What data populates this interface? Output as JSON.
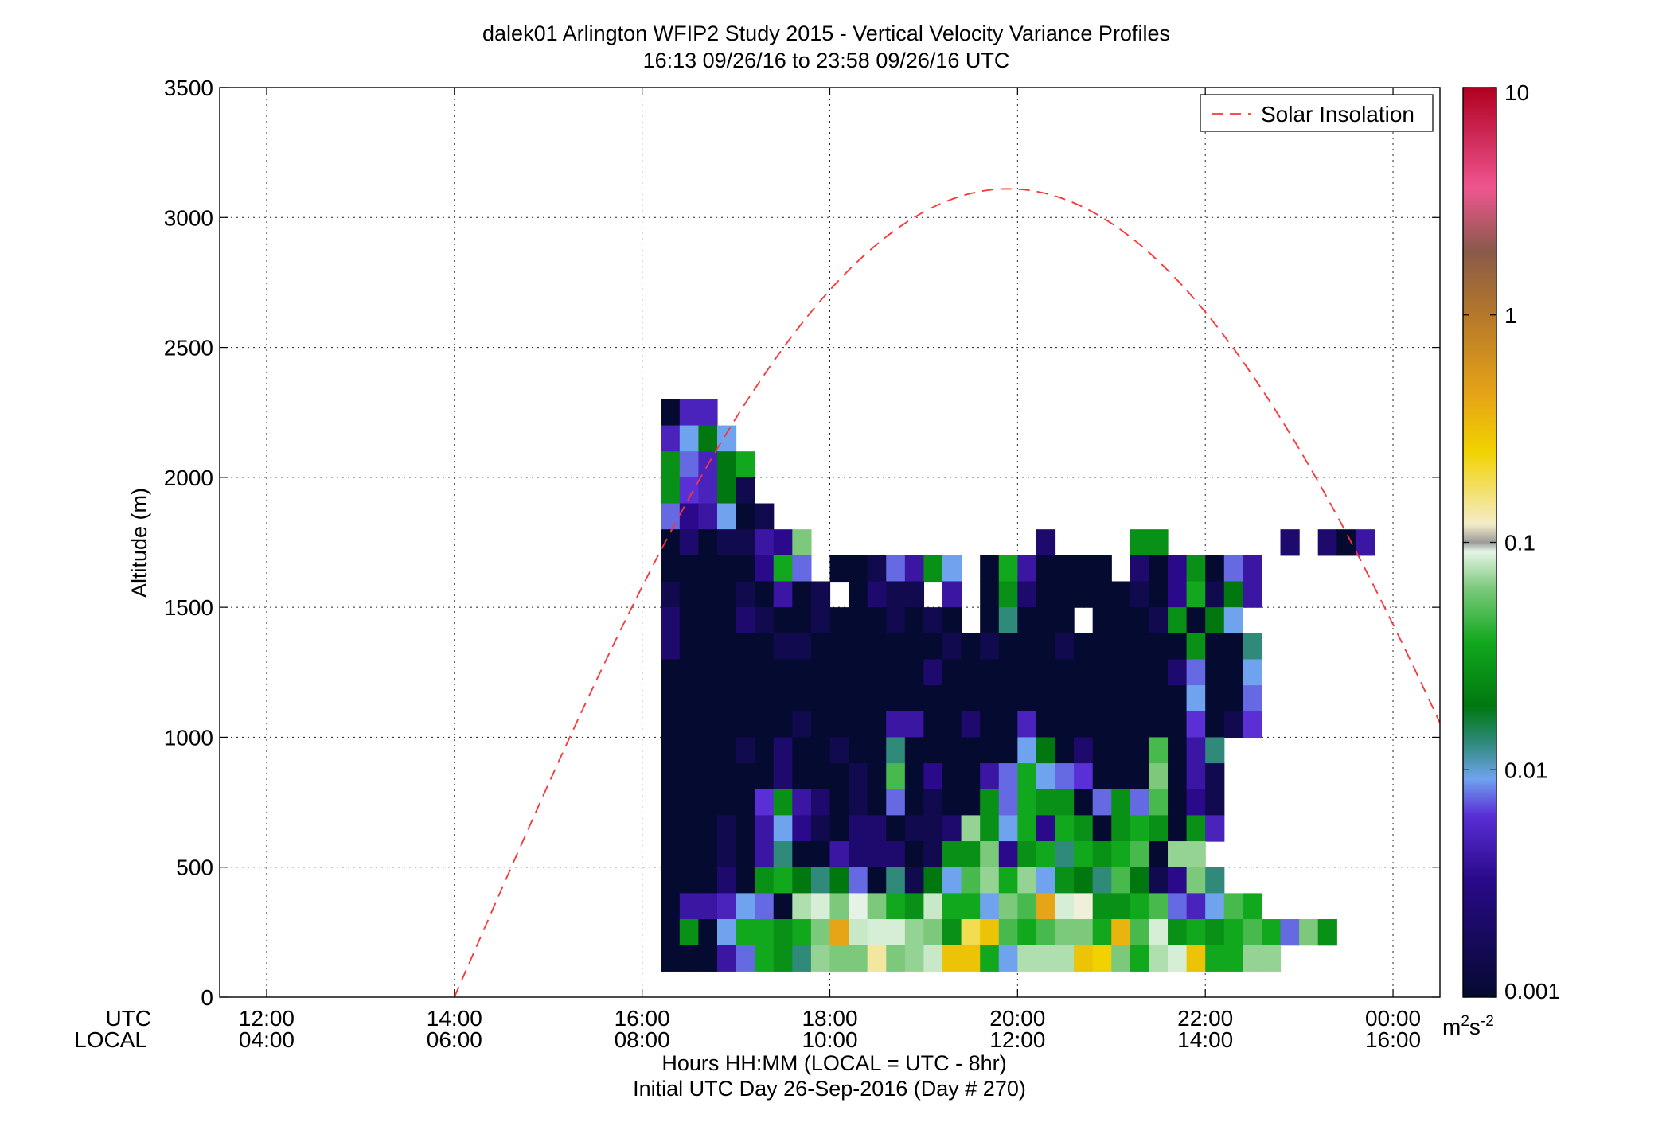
{
  "chart_data": {
    "type": "heatmap",
    "title": "dalek01 Arlington WFIP2 Study 2015 - Vertical Velocity Variance Profiles",
    "subtitle": "16:13 09/26/16 to 23:58 09/26/16  UTC",
    "ylabel": "Altitude (m)",
    "xlabel": "Hours HH:MM  (LOCAL = UTC - 8hr)",
    "xlabel2": "Initial UTC Day 26-Sep-2016 (Day # 270)",
    "row_label_utc": "UTC",
    "row_label_local": "LOCAL",
    "xlim": [
      11.5,
      24.5
    ],
    "ylim": [
      0,
      3500
    ],
    "grid": true,
    "y_ticks": [
      "0",
      "500",
      "1000",
      "1500",
      "2000",
      "2500",
      "3000",
      "3500"
    ],
    "x_ticks": [
      {
        "hour": 12,
        "utc": "12:00",
        "local": "04:00"
      },
      {
        "hour": 14,
        "utc": "14:00",
        "local": "06:00"
      },
      {
        "hour": 16,
        "utc": "16:00",
        "local": "08:00"
      },
      {
        "hour": 18,
        "utc": "18:00",
        "local": "10:00"
      },
      {
        "hour": 20,
        "utc": "20:00",
        "local": "12:00"
      },
      {
        "hour": 22,
        "utc": "22:00",
        "local": "14:00"
      },
      {
        "hour": 24,
        "utc": "00:00",
        "local": "16:00"
      }
    ],
    "colorbar": {
      "scale": "log",
      "range": [
        0.001,
        10
      ],
      "tick_labels": [
        "0.001",
        "0.01",
        "0.1",
        "1",
        "10"
      ],
      "unit_base": "m",
      "unit_exp1": "2",
      "unit_mid": "s",
      "unit_exp2": "-2"
    },
    "legend": {
      "entries": [
        {
          "name": "Solar Insolation",
          "style": "dashed",
          "color": "#ff3333"
        }
      ],
      "placement": "top-right"
    },
    "solar_insolation": {
      "start_hour": 14.0,
      "peak_hour": 19.9,
      "peak_altitude": 3110,
      "color": "#ff3333"
    },
    "heatmap": {
      "x_start_hour": 16.2,
      "x_step_hours": 0.2,
      "columns": 40,
      "y_bottom": 200,
      "y_step": 100,
      "rows_from_top": [
        {
          "top": 2300,
          "lv": [
            -3.0,
            -2.5,
            -2.5
          ]
        },
        {
          "top": 2200,
          "lv": [
            -2.5,
            -2.2,
            -2.0,
            -2.2
          ]
        },
        {
          "top": 2100,
          "lv": [
            -1.9,
            -2.3,
            -2.5,
            -2.0,
            -1.8
          ]
        },
        {
          "top": 2000,
          "lv": [
            -1.9,
            -2.4,
            -2.5,
            -2.0,
            -2.9
          ]
        },
        {
          "top": 1900,
          "lv": [
            -2.3,
            -2.7,
            -2.6,
            -2.2,
            -3.0,
            -2.9
          ]
        },
        {
          "top": 1800,
          "lv": [
            -3.0,
            -2.8,
            -3.0,
            -2.9,
            -2.9,
            -2.6,
            -2.7,
            -1.6,
            null,
            null,
            null,
            null,
            null,
            null,
            null,
            null,
            null,
            null,
            null,
            null,
            -2.8,
            null,
            null,
            null,
            null,
            -1.9,
            -1.9,
            null,
            null,
            null,
            null,
            null,
            null,
            -2.8,
            null,
            -2.8,
            -3.0,
            -2.6
          ]
        },
        {
          "top": 1700,
          "lv": [
            -3.0,
            -3.0,
            -3.0,
            -3.0,
            -3.0,
            -2.7,
            -1.8,
            -2.3,
            null,
            -3.0,
            -3.0,
            -2.9,
            -2.3,
            -2.6,
            -1.9,
            -2.2,
            null,
            -3.0,
            -1.8,
            -2.6,
            -3.0,
            -3.0,
            -3.0,
            -3.0,
            null,
            -2.8,
            -3.0,
            -2.7,
            -1.9,
            -3.0,
            -2.3,
            -2.6
          ]
        },
        {
          "top": 1600,
          "lv": [
            -2.9,
            -3.0,
            -3.0,
            -3.0,
            -2.9,
            -3.0,
            -2.6,
            -3.0,
            -2.9,
            null,
            -3.0,
            -2.8,
            -2.9,
            -2.9,
            null,
            -2.6,
            null,
            -3.0,
            -1.9,
            -2.8,
            -3.0,
            -3.0,
            -3.0,
            -3.0,
            -3.0,
            -2.9,
            -3.0,
            -2.7,
            -1.8,
            -2.9,
            -2.0,
            -2.6
          ]
        },
        {
          "top": 1500,
          "lv": [
            -2.8,
            -3.0,
            -3.0,
            -3.0,
            -2.8,
            -2.9,
            -3.0,
            -3.0,
            -2.9,
            -3.0,
            -3.0,
            -3.0,
            -2.9,
            -3.0,
            -2.9,
            -3.0,
            null,
            -3.0,
            -2.1,
            -3.0,
            -3.0,
            -3.0,
            null,
            -3.0,
            -3.0,
            -3.0,
            -2.9,
            -1.9,
            -3.0,
            -2.0,
            -2.2
          ]
        },
        {
          "top": 1400,
          "lv": [
            -2.8,
            -3.0,
            -3.0,
            -3.0,
            -3.0,
            -3.0,
            -2.9,
            -2.9,
            -3.0,
            -3.0,
            -3.0,
            -3.0,
            -3.0,
            -3.0,
            -3.0,
            -2.9,
            -3.0,
            -2.9,
            -3.0,
            -3.0,
            -3.0,
            -2.9,
            -3.0,
            -3.0,
            -3.0,
            -3.0,
            -3.0,
            -3.0,
            -1.9,
            -3.0,
            -3.0,
            -2.1
          ]
        },
        {
          "top": 1300,
          "lv": [
            -3.0,
            -3.0,
            -3.0,
            -3.0,
            -3.0,
            -3.0,
            -3.0,
            -3.0,
            -3.0,
            -3.0,
            -3.0,
            -3.0,
            -3.0,
            -3.0,
            -2.8,
            -3.0,
            -3.0,
            -3.0,
            -3.0,
            -3.0,
            -3.0,
            -3.0,
            -3.0,
            -3.0,
            -3.0,
            -3.0,
            -3.0,
            -2.8,
            -2.3,
            -3.0,
            -3.0,
            -2.2
          ]
        },
        {
          "top": 1200,
          "lv": [
            -3.0,
            -3.0,
            -3.0,
            -3.0,
            -3.0,
            -3.0,
            -3.0,
            -3.0,
            -3.0,
            -3.0,
            -3.0,
            -3.0,
            -3.0,
            -3.0,
            -3.0,
            -3.0,
            -3.0,
            -3.0,
            -3.0,
            -3.0,
            -3.0,
            -3.0,
            -3.0,
            -3.0,
            -3.0,
            -3.0,
            -3.0,
            -3.0,
            -2.2,
            -3.0,
            -3.0,
            -2.3
          ]
        },
        {
          "top": 1100,
          "lv": [
            -3.0,
            -3.0,
            -3.0,
            -3.0,
            -3.0,
            -3.0,
            -3.0,
            -2.9,
            -3.0,
            -3.0,
            -3.0,
            -3.0,
            -2.6,
            -2.6,
            -3.0,
            -3.0,
            -2.8,
            -3.0,
            -3.0,
            -2.5,
            -3.0,
            -3.0,
            -3.0,
            -3.0,
            -3.0,
            -3.0,
            -3.0,
            -3.0,
            -2.4,
            -3.0,
            -2.9,
            -2.4
          ]
        },
        {
          "top": 1000,
          "lv": [
            -3.0,
            -3.0,
            -3.0,
            -3.0,
            -2.9,
            -3.0,
            -2.8,
            -3.0,
            -3.0,
            -2.9,
            -3.0,
            -3.0,
            -2.1,
            -3.0,
            -3.0,
            -3.0,
            -3.0,
            -3.0,
            -3.0,
            -2.2,
            -2.0,
            -3.0,
            -2.8,
            -3.0,
            -3.0,
            -3.0,
            -1.7,
            -3.0,
            -2.6,
            -2.1
          ]
        },
        {
          "top": 900,
          "lv": [
            -3.0,
            -3.0,
            -3.0,
            -3.0,
            -3.0,
            -3.0,
            -2.8,
            -3.0,
            -3.0,
            -3.0,
            -2.9,
            -3.0,
            -1.7,
            -3.0,
            -2.7,
            -3.0,
            -3.0,
            -2.6,
            -2.3,
            -1.8,
            -2.2,
            -2.3,
            -2.4,
            -3.0,
            -3.0,
            -3.0,
            -1.6,
            -3.0,
            -2.6,
            -2.9
          ]
        },
        {
          "top": 800,
          "lv": [
            -3.0,
            -3.0,
            -3.0,
            -3.0,
            -3.0,
            -2.4,
            -1.9,
            -2.6,
            -2.8,
            -3.0,
            -2.9,
            -3.0,
            -2.3,
            -3.0,
            -2.9,
            -3.0,
            -3.0,
            -1.9,
            -2.3,
            -1.8,
            -1.9,
            -1.9,
            -3.0,
            -2.3,
            -1.9,
            -2.3,
            -1.7,
            -3.0,
            -2.7,
            -2.9
          ]
        },
        {
          "top": 700,
          "lv": [
            -3.0,
            -3.0,
            -3.0,
            -2.9,
            -3.0,
            -2.6,
            -2.2,
            -2.7,
            -2.9,
            -3.0,
            -2.8,
            -2.8,
            -3.0,
            -2.9,
            -2.9,
            -2.8,
            -1.5,
            -1.9,
            -2.2,
            -1.8,
            -2.7,
            -1.8,
            -1.9,
            -3.0,
            -1.9,
            -1.8,
            -1.9,
            -3.0,
            -1.9,
            -2.5
          ]
        },
        {
          "top": 600,
          "lv": [
            -3.0,
            -3.0,
            -3.0,
            -2.9,
            -3.0,
            -2.6,
            -2.1,
            -3.0,
            -3.0,
            -2.6,
            -2.8,
            -2.8,
            -2.8,
            -3.0,
            -2.9,
            -1.9,
            -1.9,
            -1.6,
            -2.7,
            -1.9,
            -1.8,
            -2.1,
            -1.8,
            -1.9,
            -1.8,
            -1.7,
            -3.0,
            -1.5,
            -1.5
          ]
        },
        {
          "top": 500,
          "lv": [
            -3.0,
            -3.0,
            -3.0,
            -2.8,
            -3.0,
            -1.9,
            -1.8,
            -2.0,
            -2.1,
            -2.0,
            -2.3,
            -3.0,
            -2.1,
            -2.9,
            -2.0,
            -2.2,
            -1.7,
            -1.5,
            -1.8,
            -1.5,
            -2.2,
            -1.9,
            -2.0,
            -2.1,
            -1.7,
            -2.0,
            -2.9,
            -2.7,
            -1.6,
            -2.1
          ]
        },
        {
          "top": 400,
          "lv": [
            -3.0,
            -2.6,
            -2.6,
            -2.5,
            -2.2,
            -2.3,
            -3.0,
            -1.4,
            -1.2,
            -1.6,
            -1.1,
            -1.6,
            -1.8,
            -1.9,
            -1.3,
            -1.8,
            -1.8,
            -2.2,
            -1.6,
            -1.7,
            -0.4,
            -1.2,
            -1.0,
            -1.9,
            -1.9,
            -1.8,
            -1.7,
            -2.3,
            -2.5,
            -2.2,
            -1.7,
            -1.8
          ]
        },
        {
          "top": 300,
          "lv": [
            -3.0,
            -1.9,
            -3.0,
            -2.2,
            -1.8,
            -1.8,
            -1.9,
            -1.8,
            -1.6,
            -0.4,
            -1.3,
            -1.2,
            -1.2,
            -1.5,
            -1.6,
            -1.9,
            -0.8,
            -0.6,
            -1.7,
            -1.8,
            -1.7,
            -1.6,
            -1.6,
            -1.8,
            -0.5,
            -1.7,
            -1.2,
            -1.9,
            -1.8,
            -1.9,
            -1.8,
            -1.7,
            -1.8,
            -2.3,
            -1.6,
            -1.9
          ]
        },
        {
          "top": 200,
          "lv": [
            -3.0,
            -3.0,
            -3.0,
            -2.6,
            -2.3,
            -1.8,
            -1.9,
            -2.1,
            -1.5,
            -1.6,
            -1.6,
            -0.9,
            -1.6,
            -1.5,
            -1.3,
            -0.6,
            -0.6,
            -1.8,
            -2.2,
            -1.4,
            -1.4,
            -1.4,
            -0.6,
            -0.7,
            -1.6,
            -1.8,
            -1.4,
            -1.2,
            -0.6,
            -1.8,
            -1.8,
            -1.5,
            -1.5
          ]
        }
      ]
    }
  }
}
